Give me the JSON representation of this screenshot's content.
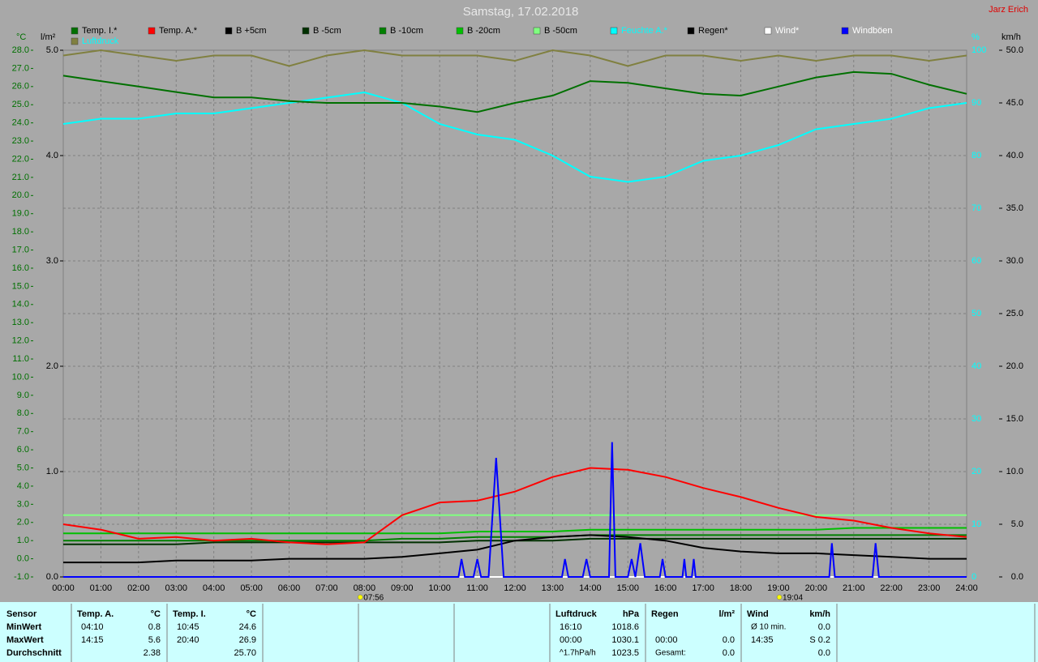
{
  "chart_data": {
    "type": "line",
    "title": "Samstag, 17.02.2018",
    "author": "Jarz Erich",
    "ylabel": "°C",
    "y3label": "l/m²",
    "y2label": "%",
    "y4label": "km/h",
    "grid": true,
    "x": [
      0,
      1,
      2,
      3,
      4,
      5,
      6,
      7,
      8,
      9,
      10,
      11,
      12,
      13,
      14,
      15,
      16,
      17,
      18,
      19,
      20,
      21,
      22,
      23,
      24
    ],
    "xlim": [
      0,
      24
    ],
    "xticks": [
      {
        "value": 0,
        "label": "00:00"
      },
      {
        "value": 1,
        "label": "01:00"
      },
      {
        "value": 2,
        "label": "02:00"
      },
      {
        "value": 3,
        "label": "03:00"
      },
      {
        "value": 4,
        "label": "04:00"
      },
      {
        "value": 5,
        "label": "05:00"
      },
      {
        "value": 6,
        "label": "06:00"
      },
      {
        "value": 7,
        "label": "07:00"
      },
      {
        "value": 8,
        "label": "08:00"
      },
      {
        "value": 9,
        "label": "09:00"
      },
      {
        "value": 10,
        "label": "10:00"
      },
      {
        "value": 11,
        "label": "11:00"
      },
      {
        "value": 12,
        "label": "12:00"
      },
      {
        "value": 13,
        "label": "13:00"
      },
      {
        "value": 14,
        "label": "14:00"
      },
      {
        "value": 15,
        "label": "15:00"
      },
      {
        "value": 16,
        "label": "16:00"
      },
      {
        "value": 17,
        "label": "17:00"
      },
      {
        "value": 18,
        "label": "18:00"
      },
      {
        "value": 19,
        "label": "19:00"
      },
      {
        "value": 20,
        "label": "20:00"
      },
      {
        "value": 21,
        "label": "21:00"
      },
      {
        "value": 22,
        "label": "22:00"
      },
      {
        "value": 23,
        "label": "23:00"
      },
      {
        "value": 24,
        "label": "24:00"
      }
    ],
    "ylim": [
      -1,
      28
    ],
    "yticks": [
      {
        "value": -1,
        "label": "-1.0"
      },
      {
        "value": 0,
        "label": "0.0"
      },
      {
        "value": 1,
        "label": "1.0"
      },
      {
        "value": 2,
        "label": "2.0"
      },
      {
        "value": 3,
        "label": "3.0"
      },
      {
        "value": 4,
        "label": "4.0"
      },
      {
        "value": 5,
        "label": "5.0"
      },
      {
        "value": 6,
        "label": "6.0"
      },
      {
        "value": 7,
        "label": "7.0"
      },
      {
        "value": 8,
        "label": "8.0"
      },
      {
        "value": 9,
        "label": "9.0"
      },
      {
        "value": 10,
        "label": "10.0"
      },
      {
        "value": 11,
        "label": "11.0"
      },
      {
        "value": 12,
        "label": "12.0"
      },
      {
        "value": 13,
        "label": "13.0"
      },
      {
        "value": 14,
        "label": "14.0"
      },
      {
        "value": 15,
        "label": "15.0"
      },
      {
        "value": 16,
        "label": "16.0"
      },
      {
        "value": 17,
        "label": "17.0"
      },
      {
        "value": 18,
        "label": "18.0"
      },
      {
        "value": 19,
        "label": "19.0"
      },
      {
        "value": 20,
        "label": "20.0"
      },
      {
        "value": 21,
        "label": "21.0"
      },
      {
        "value": 22,
        "label": "22.0"
      },
      {
        "value": 23,
        "label": "23.0"
      },
      {
        "value": 24,
        "label": "24.0"
      },
      {
        "value": 25,
        "label": "25.0"
      },
      {
        "value": 26,
        "label": "26.0"
      },
      {
        "value": 27,
        "label": "27.0"
      },
      {
        "value": 28,
        "label": "28.0"
      }
    ],
    "y3lim": [
      0,
      5
    ],
    "y3ticks": [
      {
        "value": 0,
        "label": "0.0"
      },
      {
        "value": 1,
        "label": "1.0"
      },
      {
        "value": 2,
        "label": "2.0"
      },
      {
        "value": 3,
        "label": "3.0"
      },
      {
        "value": 4,
        "label": "4.0"
      },
      {
        "value": 5,
        "label": "5.0"
      }
    ],
    "y2lim": [
      0,
      100
    ],
    "y2ticks": [
      0,
      10,
      20,
      30,
      40,
      50,
      60,
      70,
      80,
      90,
      100
    ],
    "y4lim": [
      0,
      50
    ],
    "y4ticks": [
      {
        "value": 0,
        "label": "0.0"
      },
      {
        "value": 5,
        "label": "5.0"
      },
      {
        "value": 10,
        "label": "10.0"
      },
      {
        "value": 15,
        "label": "15.0"
      },
      {
        "value": 20,
        "label": "20.0"
      },
      {
        "value": 25,
        "label": "25.0"
      },
      {
        "value": 30,
        "label": "30.0"
      },
      {
        "value": 35,
        "label": "35.0"
      },
      {
        "value": 40,
        "label": "40.0"
      },
      {
        "value": 45,
        "label": "45.0"
      },
      {
        "value": 50,
        "label": "50.0"
      }
    ],
    "series": [
      {
        "name": "Temp. I.*",
        "color": "#007000",
        "axis": "y",
        "values": [
          26.6,
          26.3,
          26.0,
          25.7,
          25.4,
          25.4,
          25.2,
          25.1,
          25.1,
          25.1,
          24.9,
          24.6,
          25.1,
          25.5,
          26.3,
          26.2,
          25.9,
          25.6,
          25.5,
          26.0,
          26.5,
          26.8,
          26.7,
          26.1,
          25.6
        ]
      },
      {
        "name": "Temp. A.*",
        "color": "#ff0000",
        "axis": "y",
        "values": [
          1.9,
          1.6,
          1.1,
          1.2,
          1.0,
          1.1,
          0.9,
          0.8,
          0.9,
          2.4,
          3.1,
          3.2,
          3.7,
          4.5,
          5.0,
          4.9,
          4.5,
          3.9,
          3.4,
          2.8,
          2.3,
          2.1,
          1.7,
          1.4,
          1.2
        ]
      },
      {
        "name": "B +5cm",
        "color": "#000000",
        "axis": "y",
        "values": [
          -0.2,
          -0.2,
          -0.2,
          -0.1,
          -0.1,
          -0.1,
          0.0,
          0.0,
          0.0,
          0.1,
          0.3,
          0.5,
          1.0,
          1.2,
          1.3,
          1.2,
          1.0,
          0.6,
          0.4,
          0.3,
          0.3,
          0.2,
          0.1,
          0.0,
          0.0
        ]
      },
      {
        "name": "B -5cm",
        "color": "#003000",
        "axis": "y",
        "values": [
          0.8,
          0.8,
          0.8,
          0.8,
          0.9,
          0.9,
          0.9,
          0.9,
          0.9,
          0.9,
          0.9,
          1.0,
          1.0,
          1.0,
          1.1,
          1.1,
          1.1,
          1.1,
          1.1,
          1.1,
          1.1,
          1.1,
          1.1,
          1.1,
          1.1
        ]
      },
      {
        "name": "B -10cm",
        "color": "#008000",
        "axis": "y",
        "values": [
          1.0,
          1.0,
          1.0,
          1.0,
          1.0,
          1.0,
          1.0,
          1.0,
          1.0,
          1.1,
          1.1,
          1.2,
          1.2,
          1.2,
          1.3,
          1.3,
          1.3,
          1.3,
          1.3,
          1.3,
          1.3,
          1.3,
          1.3,
          1.3,
          1.3
        ]
      },
      {
        "name": "B -20cm",
        "color": "#00c000",
        "axis": "y",
        "values": [
          1.4,
          1.4,
          1.4,
          1.4,
          1.4,
          1.4,
          1.4,
          1.4,
          1.4,
          1.4,
          1.4,
          1.5,
          1.5,
          1.5,
          1.6,
          1.6,
          1.6,
          1.6,
          1.6,
          1.6,
          1.6,
          1.7,
          1.7,
          1.7,
          1.7
        ]
      },
      {
        "name": "B -50cm",
        "color": "#80ff80",
        "axis": "y",
        "values": [
          2.4,
          2.4,
          2.4,
          2.4,
          2.4,
          2.4,
          2.4,
          2.4,
          2.4,
          2.4,
          2.4,
          2.4,
          2.4,
          2.4,
          2.4,
          2.4,
          2.4,
          2.4,
          2.4,
          2.4,
          2.4,
          2.4,
          2.4,
          2.4,
          2.4
        ]
      },
      {
        "name": "Feuchte A.*",
        "color": "#00ffff",
        "axis": "y2",
        "values": [
          86,
          87,
          87,
          88,
          88,
          89,
          90,
          91,
          92,
          90,
          86,
          84,
          83,
          80,
          76,
          75,
          76,
          79,
          80,
          82,
          85,
          86,
          87,
          89,
          90
        ]
      },
      {
        "name": "Regen*",
        "color": "#000000",
        "axis": "y3",
        "values": [
          0,
          0,
          0,
          0,
          0,
          0,
          0,
          0,
          0,
          0,
          0,
          0,
          0,
          0,
          0,
          0,
          0,
          0,
          0,
          0,
          0,
          0,
          0,
          0,
          0
        ]
      },
      {
        "name": "Wind*",
        "color": "#ffffff",
        "axis": "y4",
        "values": [
          0,
          0,
          0,
          0,
          0,
          0,
          0,
          0,
          0,
          0,
          0,
          0,
          0,
          0,
          0,
          0,
          0,
          0,
          0,
          0,
          0,
          0,
          0,
          0,
          0
        ]
      },
      {
        "name": "Windböen",
        "color": "#0000ff",
        "axis": "y4",
        "x": [
          0,
          10.5,
          10.58,
          10.67,
          10.9,
          11.0,
          11.1,
          11.3,
          11.5,
          11.7,
          13.25,
          13.33,
          13.42,
          13.8,
          13.9,
          14.0,
          14.5,
          14.58,
          14.67,
          15.0,
          15.1,
          15.2,
          15.33,
          15.45,
          15.85,
          15.92,
          16.0,
          16.45,
          16.5,
          16.55,
          16.7,
          16.75,
          16.8,
          20.35,
          20.42,
          20.5,
          21.5,
          21.58,
          21.67,
          24
        ],
        "values": [
          0,
          0,
          1.7,
          0,
          0,
          1.7,
          0,
          0,
          11.3,
          0,
          0,
          1.7,
          0,
          0,
          1.7,
          0,
          0,
          12.8,
          0,
          0,
          1.7,
          0,
          3.2,
          0,
          0,
          1.7,
          0,
          0,
          1.7,
          0,
          0,
          1.7,
          0,
          0,
          3.2,
          0,
          0,
          3.2,
          0,
          0
        ]
      },
      {
        "name": "Luftdruck",
        "color": "#808040",
        "axis": "y2",
        "values": [
          99,
          100,
          99,
          98,
          99,
          99,
          97,
          99,
          100,
          99,
          99,
          99,
          98,
          100,
          99,
          97,
          99,
          99,
          98,
          99,
          98,
          99,
          99,
          98,
          99
        ]
      }
    ],
    "annotations": [
      {
        "x": 7.933,
        "label": "07:56"
      },
      {
        "x": 19.067,
        "label": "19:04"
      }
    ]
  },
  "table": {
    "row_labels": [
      "Sensor",
      "MinWert",
      "MaxWert",
      "Durchschnitt"
    ],
    "groups": [
      {
        "name": "Temp. A.",
        "unit": "°C",
        "rows": [
          [
            "04:10",
            "0.8"
          ],
          [
            "14:15",
            "5.6"
          ],
          [
            null,
            "2.38"
          ]
        ]
      },
      {
        "name": "Temp. I.",
        "unit": "°C",
        "rows": [
          [
            "10:45",
            "24.6"
          ],
          [
            "20:40",
            "26.9"
          ],
          [
            null,
            "25.70"
          ]
        ]
      },
      {
        "name": null,
        "unit": null,
        "rows": [
          [
            null,
            null
          ],
          [
            null,
            null
          ],
          [
            null,
            null
          ]
        ]
      },
      {
        "name": null,
        "unit": null,
        "rows": [
          [
            null,
            null
          ],
          [
            null,
            null
          ],
          [
            null,
            null
          ]
        ]
      },
      {
        "name": null,
        "unit": null,
        "rows": [
          [
            null,
            null
          ],
          [
            null,
            null
          ],
          [
            null,
            null
          ]
        ]
      },
      {
        "name": "Luftdruck",
        "unit": "hPa",
        "rows": [
          [
            "16:10",
            "1018.6"
          ],
          [
            "00:00",
            "1030.1"
          ],
          [
            "^1.7hPa/h",
            "1023.5"
          ]
        ]
      },
      {
        "name": "Regen",
        "unit": "l/m²",
        "rows": [
          [
            null,
            null
          ],
          [
            "00:00",
            "0.0"
          ],
          [
            "Gesamt:",
            "0.0"
          ]
        ]
      },
      {
        "name": "Wind",
        "unit": "km/h",
        "rows": [
          [
            "Ø 10 min.",
            "0.0"
          ],
          [
            "14:35",
            "S 0.2"
          ],
          [
            null,
            "0.0"
          ]
        ]
      }
    ]
  }
}
